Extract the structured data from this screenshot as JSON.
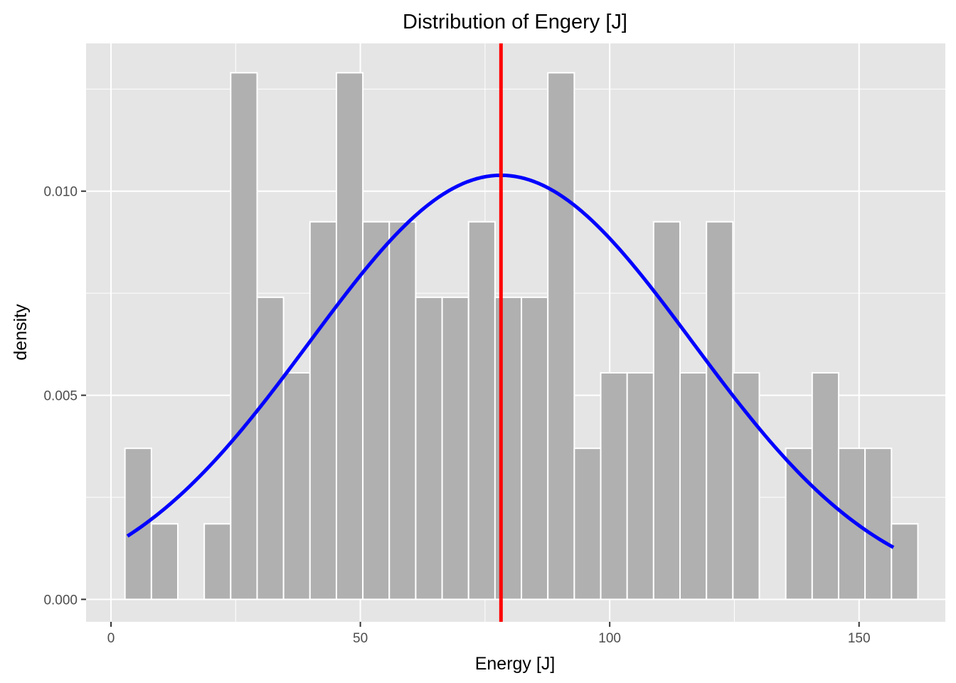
{
  "chart_data": {
    "type": "histogram",
    "title": "Distribution of Engery [J]",
    "xlabel": "Energy [J]",
    "ylabel": "density",
    "xlim": [
      -5,
      167.3
    ],
    "ylim": [
      -0.00055,
      0.01362
    ],
    "x_ticks": [
      {
        "value": 0,
        "label": "0"
      },
      {
        "value": 50,
        "label": "50"
      },
      {
        "value": 100,
        "label": "100"
      },
      {
        "value": 150,
        "label": "150"
      }
    ],
    "y_ticks": [
      {
        "value": 0.0,
        "label": "0.000"
      },
      {
        "value": 0.005,
        "label": "0.005"
      },
      {
        "value": 0.01,
        "label": "0.010"
      }
    ],
    "y_minor_breaks": [
      0.0025,
      0.0075,
      0.0125
    ],
    "x_minor_breaks": [
      25,
      75,
      125
    ],
    "bins": {
      "start": 2.8,
      "width": 5.3,
      "densities": [
        0.0037,
        0.00185,
        0,
        0.00185,
        0.0129,
        0.0074,
        0.00555,
        0.00925,
        0.0129,
        0.00925,
        0.00925,
        0.0074,
        0.0074,
        0.00925,
        0.0074,
        0.0074,
        0.0129,
        0.0037,
        0.00555,
        0.00555,
        0.00925,
        0.00555,
        0.00925,
        0.00555,
        0,
        0.0037,
        0.00555,
        0.0037,
        0.0037,
        0.00185
      ]
    },
    "normal_curve": {
      "mean": 78.2,
      "sd": 38.4,
      "x_range": [
        3.3,
        156.9
      ],
      "color": "#0000ff"
    },
    "mean_line": {
      "x": 78.2,
      "color": "#ff0000"
    },
    "bar_fill": "#b0b0b0",
    "bar_outline": "#ffffff",
    "panel_background": "#e5e5e5",
    "grid_color": "#ffffff",
    "grid": true,
    "legend": "none"
  }
}
